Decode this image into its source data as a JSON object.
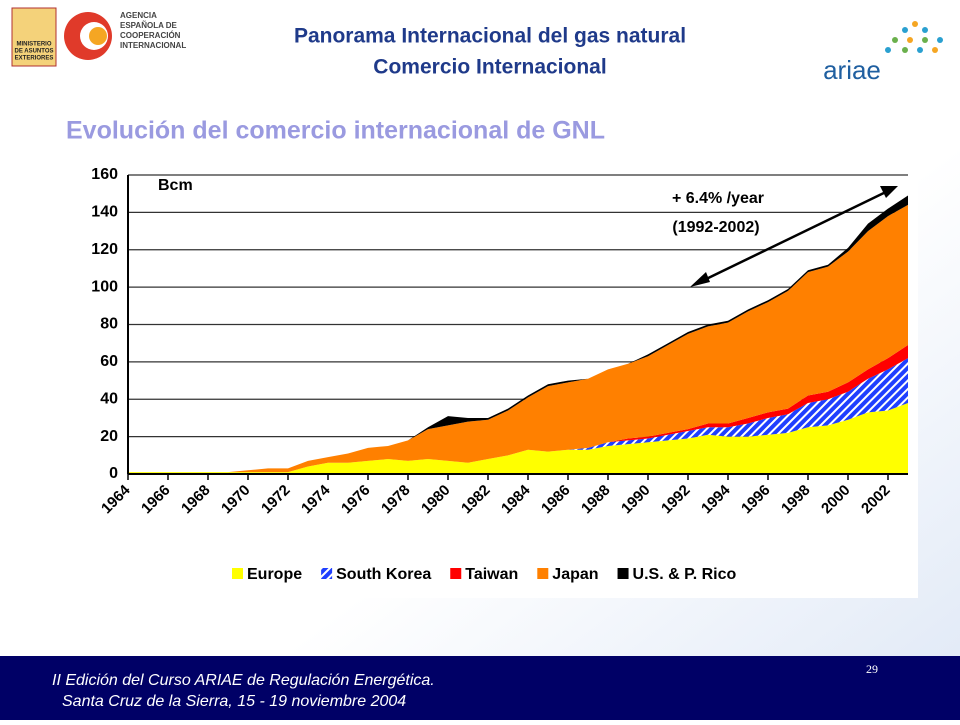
{
  "header": {
    "title_line1": "Panorama Internacional del gas natural",
    "title_line2": "Comercio Internacional",
    "agency": [
      "AGENCIA",
      "ESPAÑOLA DE",
      "COOPERACIÓN",
      "INTERNACIONAL"
    ],
    "ministry": [
      "MINISTERIO",
      "DE ASUNTOS",
      "EXTERIORES"
    ],
    "brand": "ariae"
  },
  "subtitle": "Evolución del comercio internacional de GNL",
  "footer": {
    "line1": "II Edición del Curso ARIAE de Regulación Energética.",
    "line2": "Santa Cruz de la Sierra, 15 - 19 noviembre 2004",
    "page": "29"
  },
  "chart_data": {
    "type": "stacked_area",
    "y_unit_label": "Bcm",
    "annotations": [
      "+ 6.4% /year",
      "(1992-2002)"
    ],
    "x": [
      1964,
      1965,
      1966,
      1967,
      1968,
      1969,
      1970,
      1971,
      1972,
      1973,
      1974,
      1975,
      1976,
      1977,
      1978,
      1979,
      1980,
      1981,
      1982,
      1983,
      1984,
      1985,
      1986,
      1987,
      1988,
      1989,
      1990,
      1991,
      1992,
      1993,
      1994,
      1995,
      1996,
      1997,
      1998,
      1999,
      2000,
      2001,
      2002,
      2003
    ],
    "xlim": [
      1964,
      2003
    ],
    "xticks": [
      1964,
      1966,
      1968,
      1970,
      1972,
      1974,
      1976,
      1978,
      1980,
      1982,
      1984,
      1986,
      1988,
      1990,
      1992,
      1994,
      1996,
      1998,
      2000,
      2002
    ],
    "ylim": [
      0,
      160
    ],
    "yticks": [
      0,
      20,
      40,
      60,
      80,
      100,
      120,
      140,
      160
    ],
    "grid": true,
    "series": [
      {
        "name": "Europe",
        "color": "#ffff00",
        "values": [
          1,
          1,
          1,
          1,
          1,
          1,
          1,
          1,
          1,
          4,
          6,
          6,
          7,
          8,
          7,
          8,
          7,
          6,
          8,
          10,
          13,
          12,
          13,
          13,
          15,
          16,
          17,
          18,
          19,
          21,
          20,
          20,
          21,
          22,
          25,
          26,
          29,
          33,
          34,
          38
        ]
      },
      {
        "name": "South Korea",
        "color": "#1f3fff",
        "pattern": "hatch",
        "values": [
          0,
          0,
          0,
          0,
          0,
          0,
          0,
          0,
          0,
          0,
          0,
          0,
          0,
          0,
          0,
          0,
          0,
          0,
          0,
          0,
          0,
          0,
          0,
          1,
          2,
          2,
          2,
          3,
          4,
          4,
          5,
          7,
          9,
          10,
          13,
          14,
          15,
          18,
          22,
          24
        ]
      },
      {
        "name": "Taiwan",
        "color": "#ff0000",
        "values": [
          0,
          0,
          0,
          0,
          0,
          0,
          0,
          0,
          0,
          0,
          0,
          0,
          0,
          0,
          0,
          0,
          0,
          0,
          0,
          0,
          0,
          0,
          0,
          0,
          0,
          1,
          1,
          1,
          1,
          2,
          2,
          3,
          3,
          3,
          4,
          4,
          5,
          5,
          6,
          7
        ]
      },
      {
        "name": "Japan",
        "color": "#ff8000",
        "values": [
          0,
          0,
          0,
          0,
          0,
          0,
          1,
          2,
          2,
          3,
          3,
          5,
          7,
          7,
          11,
          16,
          19,
          22,
          21,
          24,
          28,
          35,
          36,
          37,
          39,
          40,
          43,
          47,
          51,
          52,
          54,
          57,
          59,
          63,
          66,
          67,
          70,
          74,
          76,
          75
        ]
      },
      {
        "name": "U.S. & P. Rico",
        "color": "#000000",
        "values": [
          0,
          0,
          0,
          0,
          0,
          0,
          0,
          0,
          0,
          0,
          0,
          0,
          0,
          0,
          0,
          1,
          5,
          2,
          1,
          1,
          1,
          1,
          1,
          0,
          0,
          0,
          1,
          1,
          1,
          1,
          1,
          1,
          1,
          1,
          1,
          1,
          2,
          4,
          4,
          5
        ]
      }
    ]
  }
}
